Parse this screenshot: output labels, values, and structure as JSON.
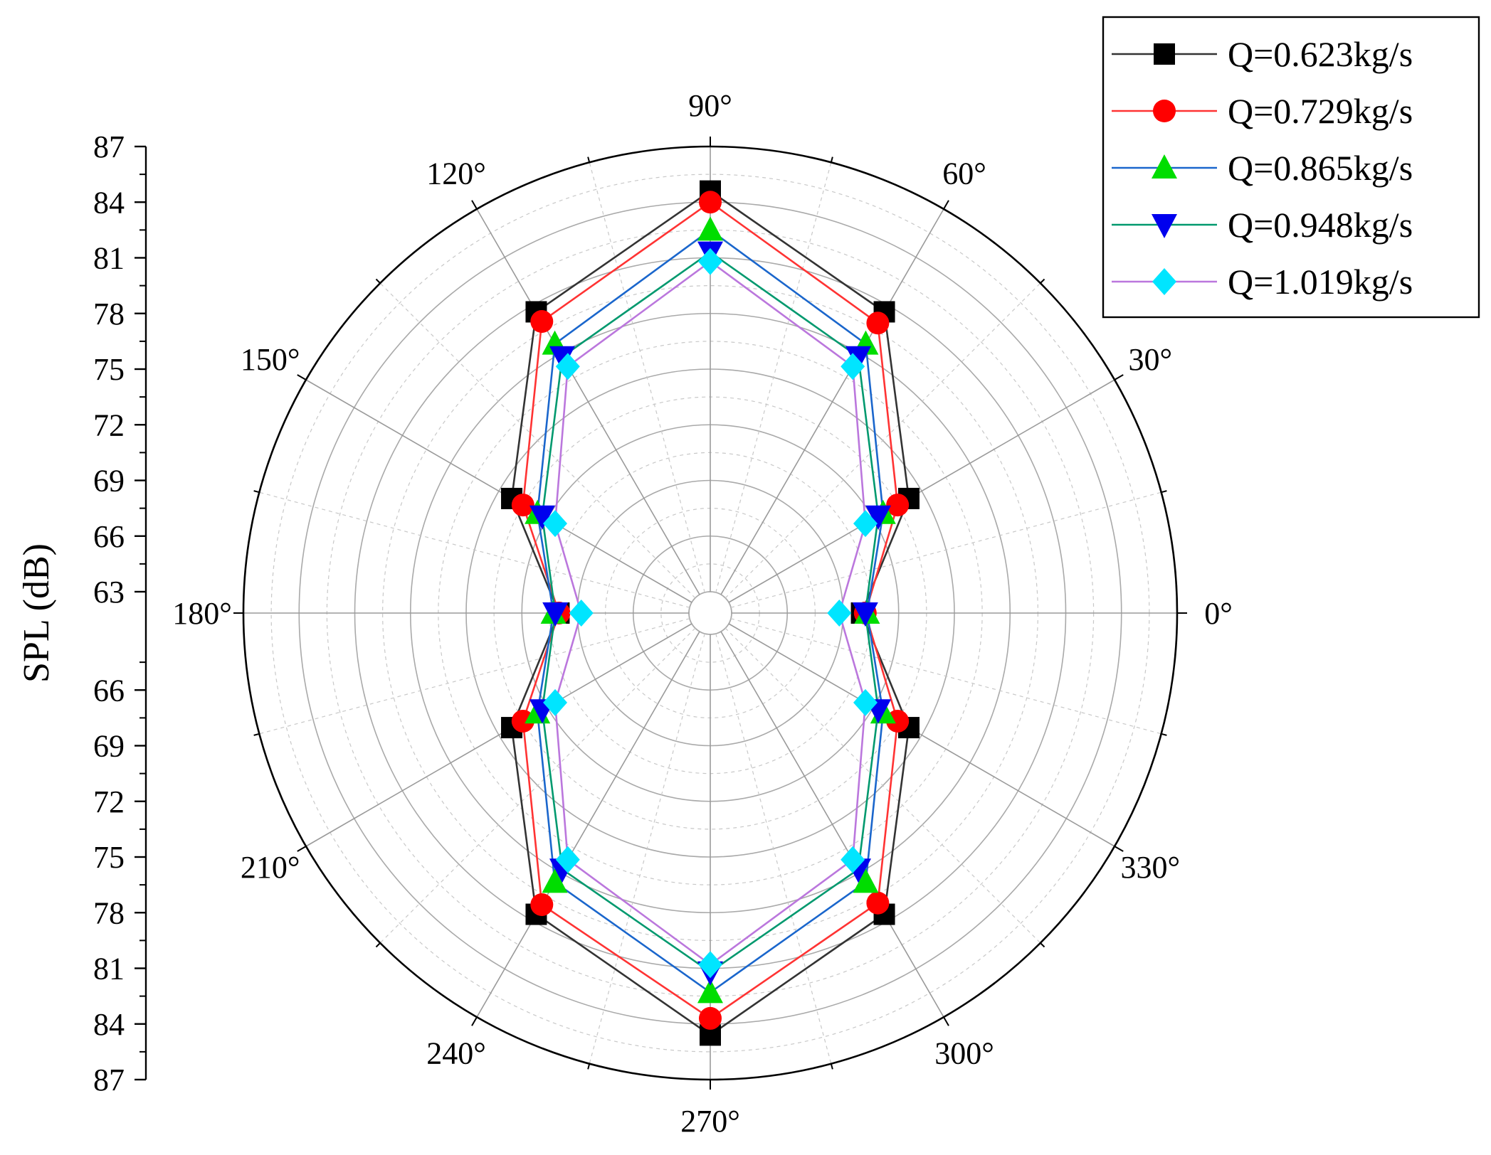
{
  "chart_data": {
    "type": "polar-line",
    "title": "",
    "ylabel": "SPL (dB)",
    "rlim": [
      63,
      87
    ],
    "r_ticks": [
      63,
      66,
      69,
      72,
      75,
      78,
      81,
      84,
      87
    ],
    "r_tick_labels_upper": [
      "87",
      "84",
      "81",
      "78",
      "75",
      "72",
      "69",
      "66",
      "63"
    ],
    "r_tick_labels_lower": [
      "66",
      "69",
      "72",
      "75",
      "78",
      "81",
      "84",
      "87"
    ],
    "angle_ticks": [
      0,
      30,
      60,
      90,
      120,
      150,
      180,
      210,
      240,
      270,
      300,
      330
    ],
    "angle_labels": [
      "0°",
      "30°",
      "60°",
      "90°",
      "120°",
      "150°",
      "180°",
      "210°",
      "240°",
      "270°",
      "300°",
      "330°"
    ],
    "grid": true,
    "legend_position": "top-right",
    "theta": [
      0,
      30,
      60,
      90,
      120,
      150,
      180,
      210,
      240,
      270,
      300,
      330
    ],
    "series": [
      {
        "name": "Q=0.623kg/s",
        "color": "#333333",
        "marker_color": "#000000",
        "marker": "square",
        "values": [
          70.0,
          74.2,
          80.6,
          84.6,
          80.6,
          74.2,
          70.0,
          74.2,
          80.6,
          84.6,
          80.6,
          74.2
        ]
      },
      {
        "name": "Q=0.729kg/s",
        "color": "#ff3333",
        "marker_color": "#ff0000",
        "marker": "circle",
        "values": [
          70.2,
          73.5,
          79.9,
          84.0,
          80.0,
          73.5,
          70.0,
          73.5,
          80.0,
          83.7,
          79.9,
          73.5
        ]
      },
      {
        "name": "Q=0.865kg/s",
        "color": "#1a66cc",
        "marker_color": "#00dd00",
        "marker": "triangle-up",
        "values": [
          70.3,
          72.6,
          78.6,
          82.5,
          78.6,
          72.6,
          70.3,
          72.6,
          78.6,
          82.3,
          78.6,
          72.6
        ]
      },
      {
        "name": "Q=0.948kg/s",
        "color": "#00996e",
        "marker_color": "#0000ee",
        "marker": "triangle-down",
        "values": [
          70.2,
          72.3,
          77.8,
          81.3,
          77.8,
          72.3,
          70.2,
          72.3,
          77.8,
          81.2,
          77.8,
          72.3
        ]
      },
      {
        "name": "Q=1.019kg/s",
        "color": "#bb77dd",
        "marker_color": "#00e5ff",
        "marker": "diamond",
        "values": [
          68.8,
          71.5,
          77.2,
          80.8,
          77.2,
          71.5,
          68.8,
          71.5,
          77.2,
          80.8,
          77.2,
          71.5
        ]
      }
    ]
  }
}
